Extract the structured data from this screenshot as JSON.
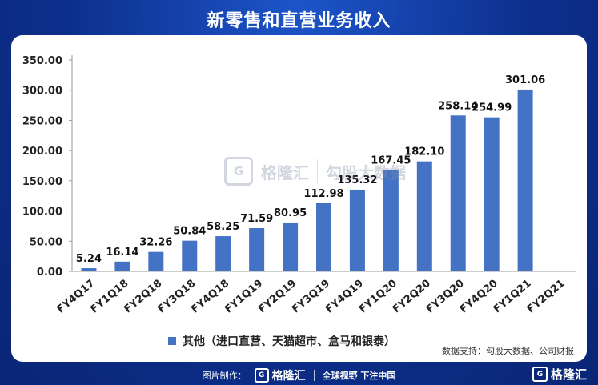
{
  "title": "新零售和直营业务收入",
  "source": "数据支持：勾股大数据、公司财报",
  "watermark": {
    "logo_glyph": "G",
    "brand": "格隆汇",
    "brand2": "勾股大数据"
  },
  "footer": {
    "made_by": "图片制作：",
    "logo_glyph": "G",
    "brand": "格隆汇",
    "slogan": "全球视野 下注中国"
  },
  "corner_brand": {
    "logo_glyph": "G",
    "brand": "格隆汇"
  },
  "colors": {
    "bar": "#4472c4",
    "background": "#0c2f8c"
  },
  "chart_data": {
    "type": "bar",
    "title": "新零售和直营业务收入",
    "categories": [
      "FY4Q17",
      "FY1Q18",
      "FY2Q18",
      "FY3Q18",
      "FY4Q18",
      "FY1Q19",
      "FY2Q19",
      "FY3Q19",
      "FY4Q19",
      "FY1Q20",
      "FY2Q20",
      "FY3Q20",
      "FY4Q20",
      "FY1Q21",
      "FY2Q21"
    ],
    "series": [
      {
        "name": "其他（进口直营、天猫超市、盒马和银泰）",
        "values": [
          5.24,
          16.14,
          32.26,
          50.84,
          58.25,
          71.59,
          80.95,
          112.98,
          135.32,
          167.45,
          182.1,
          258.14,
          254.99,
          301.06,
          null
        ],
        "labels": [
          "5.24",
          "16.14",
          "32.26",
          "50.84",
          "58.25",
          "71.59",
          "80.95",
          "112.98",
          "135.32",
          "167.45",
          "182.10",
          "258.14",
          "254.99",
          "301.06",
          ""
        ]
      }
    ],
    "yticks": [
      "0.00",
      "50.00",
      "100.00",
      "150.00",
      "200.00",
      "250.00",
      "300.00",
      "350.00"
    ],
    "ylim": [
      0,
      350
    ],
    "grid": false,
    "legend_position": "bottom"
  }
}
